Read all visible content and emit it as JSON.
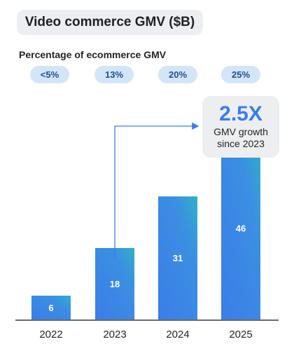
{
  "title": "Video commerce GMV ($B)",
  "pct_label": "Percentage of ecommerce GMV",
  "pct_pills": [
    "<5%",
    "13%",
    "20%",
    "25%"
  ],
  "callout": {
    "big": "2.5X",
    "line1": "GMV growth",
    "line2": "since 2023"
  },
  "chart_data": {
    "type": "bar",
    "title": "Video commerce GMV ($B)",
    "categories": [
      "2022",
      "2023",
      "2024",
      "2025"
    ],
    "values": [
      6,
      18,
      31,
      46
    ],
    "xlabel": "",
    "ylabel": "",
    "ylim": [
      0,
      48
    ],
    "grid": false,
    "colors": {
      "bar_top": "#2fb0c8",
      "bar_bottom": "#3b7de8",
      "arrow": "#3b7de8"
    }
  }
}
